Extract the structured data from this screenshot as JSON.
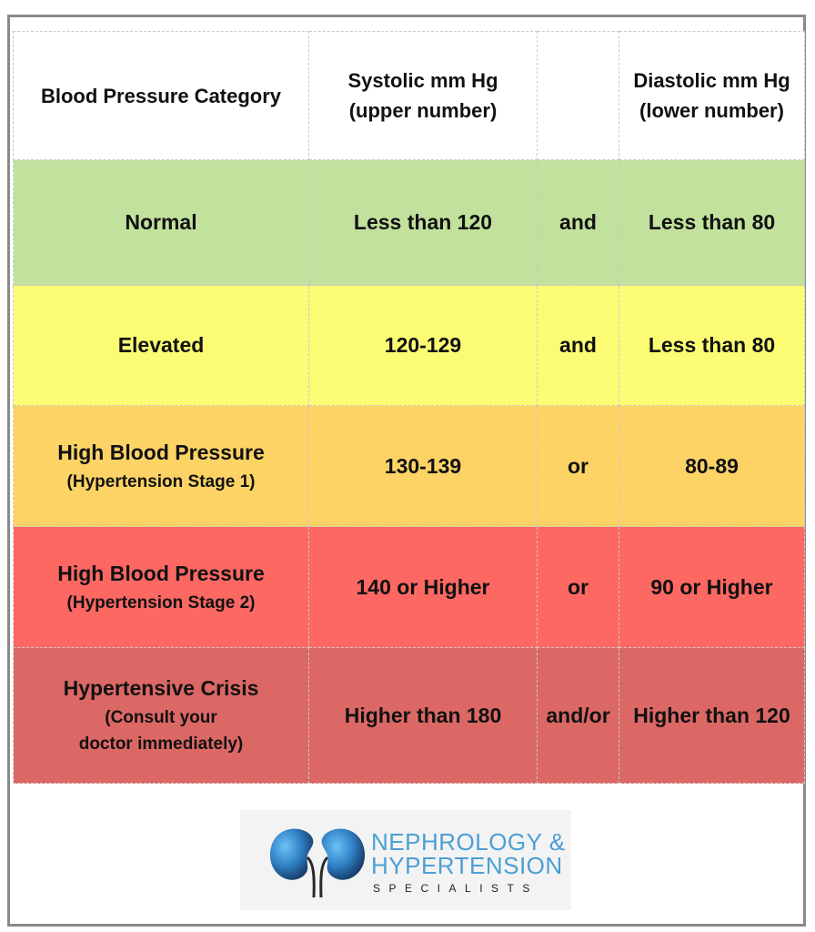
{
  "table": {
    "headers": {
      "category": "Blood Pressure Category",
      "systolic_line1": "Systolic mm Hg",
      "systolic_line2": "(upper number)",
      "connector": "",
      "diastolic_line1": "Diastolic mm Hg",
      "diastolic_line2": "(lower number)"
    },
    "rows": [
      {
        "category": "Normal",
        "category_sub": "",
        "category_sub2": "",
        "systolic": "Less than 120",
        "connector": "and",
        "diastolic": "Less than 80",
        "color": "#c2e19c"
      },
      {
        "category": "Elevated",
        "category_sub": "",
        "category_sub2": "",
        "systolic": "120-129",
        "connector": "and",
        "diastolic": "Less than 80",
        "color": "#fbfc74"
      },
      {
        "category": "High Blood Pressure",
        "category_sub": "(Hypertension Stage 1)",
        "category_sub2": "",
        "systolic": "130-139",
        "connector": "or",
        "diastolic": "80-89",
        "color": "#fdd365"
      },
      {
        "category": "High Blood Pressure",
        "category_sub": "(Hypertension Stage 2)",
        "category_sub2": "",
        "systolic": "140 or Higher",
        "connector": "or",
        "diastolic": "90 or Higher",
        "color": "#fd6863"
      },
      {
        "category": "Hypertensive Crisis",
        "category_sub": "(Consult your",
        "category_sub2": "doctor immediately)",
        "systolic": "Higher than 180",
        "connector": "and/or",
        "diastolic": "Higher than 120",
        "color": "#dc6865"
      }
    ]
  },
  "logo": {
    "line1": "NEPHROLOGY &",
    "line2": "HYPERTENSION",
    "line3": "SPECIALISTS",
    "icon": "kidneys-icon",
    "text_color": "#4b9fd6"
  }
}
